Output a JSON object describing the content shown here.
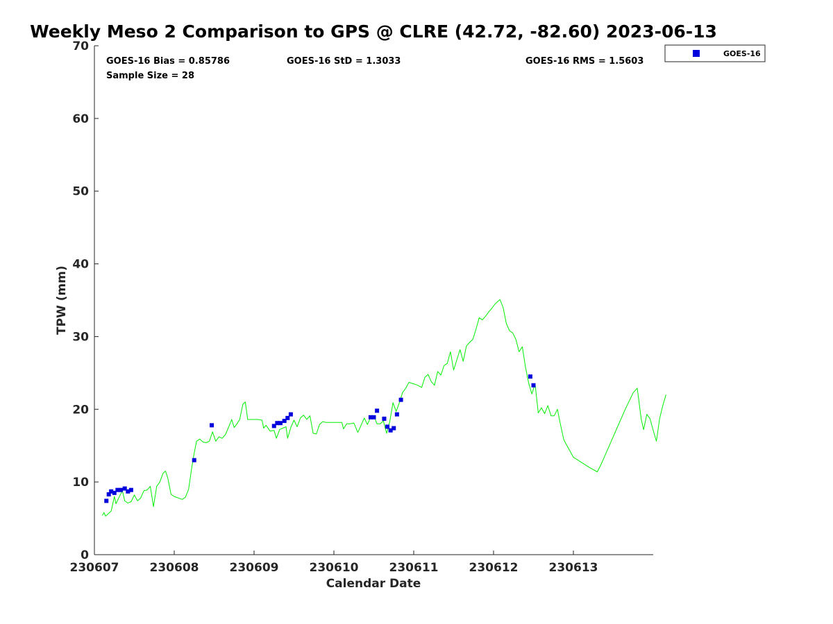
{
  "chart_data": {
    "type": "scatter",
    "title": "Weekly Meso 2 Comparison to GPS @ CLRE (42.72, -82.60) 2023-06-13",
    "xlabel": "Calendar Date",
    "ylabel": "TPW (mm)",
    "xlim": [
      230607,
      230614
    ],
    "ylim": [
      0,
      70
    ],
    "x_ticks": [
      "230607",
      "230608",
      "230609",
      "230610",
      "230611",
      "230612",
      "230613"
    ],
    "y_ticks": [
      "0",
      "10",
      "20",
      "30",
      "40",
      "50",
      "60",
      "70"
    ],
    "grid": false,
    "legend_position": "top-right",
    "stats": {
      "bias": "GOES-16 Bias = 0.85786",
      "std": "GOES-16 StD = 1.3033",
      "rms": "GOES-16 RMS = 1.5603",
      "sample": "Sample Size = 28"
    },
    "series": [
      {
        "name": "GOES-16",
        "kind": "scatter",
        "color": "#0000dd",
        "marker": "square",
        "points": [
          [
            230607.15,
            7.4
          ],
          [
            230607.18,
            8.3
          ],
          [
            230607.21,
            8.7
          ],
          [
            230607.25,
            8.5
          ],
          [
            230607.29,
            8.9
          ],
          [
            230607.33,
            8.9
          ],
          [
            230607.38,
            9.1
          ],
          [
            230607.42,
            8.7
          ],
          [
            230607.46,
            8.9
          ],
          [
            230608.25,
            13.0
          ],
          [
            230608.47,
            17.8
          ],
          [
            230609.25,
            17.7
          ],
          [
            230609.29,
            18.1
          ],
          [
            230609.33,
            18.1
          ],
          [
            230609.38,
            18.4
          ],
          [
            230609.42,
            18.8
          ],
          [
            230609.46,
            19.3
          ],
          [
            230610.46,
            18.9
          ],
          [
            230610.5,
            18.9
          ],
          [
            230610.54,
            19.8
          ],
          [
            230610.63,
            18.7
          ],
          [
            230610.67,
            17.6
          ],
          [
            230610.71,
            17.1
          ],
          [
            230610.75,
            17.4
          ],
          [
            230610.79,
            19.3
          ],
          [
            230610.84,
            21.3
          ],
          [
            230612.46,
            24.5
          ],
          [
            230612.5,
            23.3
          ]
        ]
      },
      {
        "kind": "line",
        "color": "#00ee00",
        "points": [
          [
            230607.1,
            5.4
          ],
          [
            230607.12,
            5.8
          ],
          [
            230607.14,
            5.3
          ],
          [
            230607.17,
            5.6
          ],
          [
            230607.21,
            6.0
          ],
          [
            230607.25,
            8.0
          ],
          [
            230607.27,
            7.0
          ],
          [
            230607.3,
            7.7
          ],
          [
            230607.35,
            8.8
          ],
          [
            230607.38,
            7.4
          ],
          [
            230607.42,
            7.1
          ],
          [
            230607.46,
            7.3
          ],
          [
            230607.5,
            8.2
          ],
          [
            230607.54,
            7.4
          ],
          [
            230607.58,
            7.8
          ],
          [
            230607.62,
            8.8
          ],
          [
            230607.66,
            8.9
          ],
          [
            230607.7,
            9.4
          ],
          [
            230607.74,
            6.6
          ],
          [
            230607.78,
            9.4
          ],
          [
            230607.82,
            10.0
          ],
          [
            230607.86,
            11.2
          ],
          [
            230607.89,
            11.5
          ],
          [
            230607.92,
            10.5
          ],
          [
            230607.96,
            8.3
          ],
          [
            230608.0,
            8.0
          ],
          [
            230608.05,
            7.8
          ],
          [
            230608.1,
            7.6
          ],
          [
            230608.14,
            7.9
          ],
          [
            230608.18,
            9.0
          ],
          [
            230608.22,
            12.0
          ],
          [
            230608.25,
            14.0
          ],
          [
            230608.28,
            15.6
          ],
          [
            230608.32,
            15.9
          ],
          [
            230608.36,
            15.5
          ],
          [
            230608.4,
            15.4
          ],
          [
            230608.44,
            15.6
          ],
          [
            230608.48,
            16.9
          ],
          [
            230608.52,
            15.6
          ],
          [
            230608.56,
            16.2
          ],
          [
            230608.6,
            16.0
          ],
          [
            230608.64,
            16.5
          ],
          [
            230608.68,
            17.5
          ],
          [
            230608.72,
            18.6
          ],
          [
            230608.75,
            17.5
          ],
          [
            230608.78,
            17.9
          ],
          [
            230608.82,
            18.6
          ],
          [
            230608.86,
            20.7
          ],
          [
            230608.89,
            21.0
          ],
          [
            230608.92,
            18.6
          ],
          [
            230608.96,
            18.6
          ],
          [
            230609.0,
            18.6
          ],
          [
            230609.05,
            18.6
          ],
          [
            230609.1,
            18.5
          ],
          [
            230609.12,
            17.4
          ],
          [
            230609.15,
            17.8
          ],
          [
            230609.2,
            17.0
          ],
          [
            230609.25,
            17.1
          ],
          [
            230609.28,
            16.0
          ],
          [
            230609.32,
            17.2
          ],
          [
            230609.36,
            17.4
          ],
          [
            230609.4,
            17.6
          ],
          [
            230609.42,
            16.0
          ],
          [
            230609.46,
            17.5
          ],
          [
            230609.5,
            18.5
          ],
          [
            230609.54,
            17.6
          ],
          [
            230609.58,
            18.8
          ],
          [
            230609.62,
            19.2
          ],
          [
            230609.66,
            18.6
          ],
          [
            230609.7,
            19.1
          ],
          [
            230609.74,
            16.7
          ],
          [
            230609.78,
            16.6
          ],
          [
            230609.82,
            17.9
          ],
          [
            230609.86,
            18.3
          ],
          [
            230609.9,
            18.2
          ],
          [
            230609.95,
            18.2
          ],
          [
            230610.0,
            18.2
          ],
          [
            230610.05,
            18.2
          ],
          [
            230610.1,
            18.2
          ],
          [
            230610.12,
            17.3
          ],
          [
            230610.16,
            18.0
          ],
          [
            230610.2,
            18.0
          ],
          [
            230610.25,
            18.1
          ],
          [
            230610.3,
            16.8
          ],
          [
            230610.34,
            17.8
          ],
          [
            230610.38,
            18.8
          ],
          [
            230610.42,
            17.9
          ],
          [
            230610.46,
            18.9
          ],
          [
            230610.5,
            19.1
          ],
          [
            230610.54,
            18.0
          ],
          [
            230610.58,
            18.0
          ],
          [
            230610.62,
            18.4
          ],
          [
            230610.66,
            16.7
          ],
          [
            230610.7,
            18.3
          ],
          [
            230610.74,
            20.9
          ],
          [
            230610.78,
            19.7
          ],
          [
            230610.82,
            20.9
          ],
          [
            230610.86,
            22.3
          ],
          [
            230610.9,
            22.9
          ],
          [
            230610.94,
            23.7
          ],
          [
            230611.0,
            23.5
          ],
          [
            230611.05,
            23.3
          ],
          [
            230611.1,
            23.0
          ],
          [
            230611.14,
            24.4
          ],
          [
            230611.18,
            24.8
          ],
          [
            230611.22,
            23.8
          ],
          [
            230611.26,
            23.3
          ],
          [
            230611.3,
            25.2
          ],
          [
            230611.34,
            24.7
          ],
          [
            230611.38,
            26.0
          ],
          [
            230611.42,
            26.3
          ],
          [
            230611.46,
            27.9
          ],
          [
            230611.5,
            25.4
          ],
          [
            230611.54,
            26.8
          ],
          [
            230611.58,
            28.2
          ],
          [
            230611.62,
            26.6
          ],
          [
            230611.66,
            28.7
          ],
          [
            230611.7,
            29.2
          ],
          [
            230611.74,
            29.6
          ],
          [
            230611.78,
            31.0
          ],
          [
            230611.82,
            32.6
          ],
          [
            230611.86,
            32.3
          ],
          [
            230611.9,
            32.8
          ],
          [
            230611.94,
            33.4
          ],
          [
            230611.98,
            33.9
          ],
          [
            230612.02,
            34.5
          ],
          [
            230612.08,
            35.1
          ],
          [
            230612.12,
            34.0
          ],
          [
            230612.16,
            31.8
          ],
          [
            230612.2,
            30.8
          ],
          [
            230612.24,
            30.5
          ],
          [
            230612.28,
            29.6
          ],
          [
            230612.32,
            27.9
          ],
          [
            230612.36,
            28.6
          ],
          [
            230612.4,
            25.8
          ],
          [
            230612.44,
            23.6
          ],
          [
            230612.48,
            22.1
          ],
          [
            230612.52,
            23.5
          ],
          [
            230612.56,
            19.5
          ],
          [
            230612.6,
            20.2
          ],
          [
            230612.64,
            19.4
          ],
          [
            230612.68,
            20.5
          ],
          [
            230612.72,
            19.1
          ],
          [
            230612.76,
            19.1
          ],
          [
            230612.8,
            20.0
          ],
          [
            230612.84,
            17.8
          ],
          [
            230612.88,
            15.8
          ],
          [
            230612.92,
            15.0
          ],
          [
            230612.96,
            14.2
          ],
          [
            230613.0,
            13.4
          ],
          [
            230613.1,
            12.7
          ],
          [
            230613.2,
            12.0
          ],
          [
            230613.3,
            11.4
          ],
          [
            230613.35,
            12.5
          ],
          [
            230613.45,
            15.0
          ],
          [
            230613.55,
            17.5
          ],
          [
            230613.65,
            20.0
          ],
          [
            230613.75,
            22.3
          ],
          [
            230613.8,
            22.9
          ],
          [
            230613.85,
            18.6
          ],
          [
            230613.88,
            17.2
          ],
          [
            230613.92,
            19.3
          ],
          [
            230613.96,
            18.7
          ],
          [
            230614.0,
            17.1
          ],
          [
            230614.04,
            15.6
          ],
          [
            230614.08,
            18.7
          ],
          [
            230614.12,
            20.5
          ],
          [
            230614.16,
            22.0
          ]
        ]
      }
    ]
  }
}
